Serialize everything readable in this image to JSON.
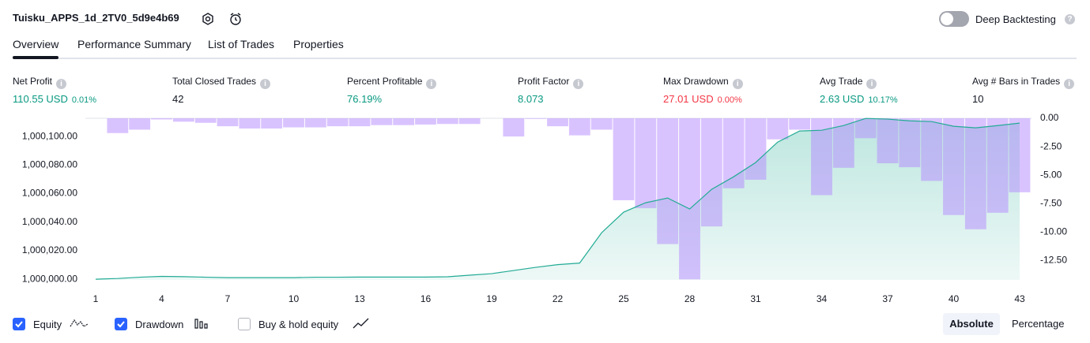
{
  "header": {
    "title": "Tuisku_APPS_1d_2TV0_5d9e4b69",
    "toggle_label": "Deep Backtesting"
  },
  "tabs": [
    "Overview",
    "Performance Summary",
    "List of Trades",
    "Properties"
  ],
  "metrics": [
    {
      "label": "Net Profit",
      "value": "110.55 USD",
      "percent": "0.01%",
      "tone": "positive"
    },
    {
      "label": "Total Closed Trades",
      "value": "42",
      "tone": "neutral"
    },
    {
      "label": "Percent Profitable",
      "value": "76.19%",
      "tone": "positive"
    },
    {
      "label": "Profit Factor",
      "value": "8.073",
      "tone": "positive"
    },
    {
      "label": "Max Drawdown",
      "value": "27.01 USD",
      "percent": "0.00%",
      "tone": "negative"
    },
    {
      "label": "Avg Trade",
      "value": "2.63 USD",
      "percent": "10.17%",
      "tone": "positive"
    },
    {
      "label": "Avg # Bars in Trades",
      "value": "10",
      "tone": "neutral"
    }
  ],
  "chart_data": {
    "type": "line",
    "x": [
      1,
      2,
      3,
      4,
      5,
      6,
      7,
      8,
      9,
      10,
      11,
      12,
      13,
      14,
      15,
      16,
      17,
      18,
      19,
      20,
      21,
      22,
      23,
      24,
      25,
      26,
      27,
      28,
      29,
      30,
      31,
      32,
      33,
      34,
      35,
      36,
      37,
      38,
      39,
      40,
      41,
      42,
      43
    ],
    "xlim": [
      1,
      43
    ],
    "xticks": [
      1,
      4,
      7,
      10,
      13,
      16,
      19,
      22,
      25,
      28,
      31,
      34,
      37,
      40,
      43
    ],
    "ylim": [
      999999.5,
      1000112.8
    ],
    "yticks": [
      {
        "value": 1000000,
        "label": "1,000,000.00"
      },
      {
        "value": 1000020,
        "label": "1,000,020.00"
      },
      {
        "value": 1000040,
        "label": "1,000,040.00"
      },
      {
        "value": 1000060,
        "label": "1,000,060.00"
      },
      {
        "value": 1000080,
        "label": "1,000,080.00"
      },
      {
        "value": 1000100,
        "label": "1,000,100.00"
      }
    ],
    "y2lim": [
      -14.2,
      0
    ],
    "y2ticks": [
      {
        "value": 0,
        "label": "0.00"
      },
      {
        "value": -2.5,
        "label": "-2.50"
      },
      {
        "value": -5,
        "label": "-5.00"
      },
      {
        "value": -7.5,
        "label": "-7.50"
      },
      {
        "value": -10,
        "label": "-10.00"
      },
      {
        "value": -12.5,
        "label": "-12.50"
      }
    ],
    "series": [
      {
        "name": "Equity",
        "color": "#22ab94",
        "values": [
          1000000,
          1000000.5,
          1000001.4,
          1000002,
          1000001.8,
          1000001.4,
          1000001.1,
          1000001.1,
          1000001.1,
          1000001.1,
          1000001.4,
          1000001.4,
          1000001.5,
          1000001.5,
          1000001.5,
          1000001.5,
          1000001.7,
          1000002.8,
          1000003.9,
          1000006.1,
          1000008.3,
          1000010.2,
          1000011.3,
          1000032.6,
          1000047,
          1000053.6,
          1000056.9,
          1000049.2,
          1000063,
          1000071.8,
          1000081.8,
          1000096.1,
          1000103.9,
          1000104.4,
          1000107.7,
          1000112.7,
          1000112.2,
          1000111,
          1000110.5,
          1000107.2,
          1000106.1,
          1000107.7,
          1000109.4
        ]
      },
      {
        "name": "Drawdown",
        "color": "#b388ff",
        "axis": "y2",
        "values": [
          0,
          -1.3,
          -1,
          -0.1,
          -0.3,
          -0.4,
          -0.7,
          -0.9,
          -0.9,
          -0.8,
          -0.8,
          -0.7,
          -0.7,
          -0.6,
          -0.6,
          -0.55,
          -0.5,
          -0.5,
          0,
          -1.6,
          -0.05,
          -0.7,
          -1.5,
          -1,
          -7.2,
          -7.9,
          -11.05,
          -14.15,
          -9.5,
          -6.15,
          -5.4,
          -1.85,
          -1,
          -6.75,
          -4.35,
          -1.75,
          -3.95,
          -4.3,
          -5.5,
          -8.5,
          -9.75,
          -8.3,
          -6.5
        ]
      }
    ]
  },
  "legend": {
    "unchecked": "Buy & hold equity"
  },
  "modes": [
    "Absolute",
    "Percentage"
  ]
}
